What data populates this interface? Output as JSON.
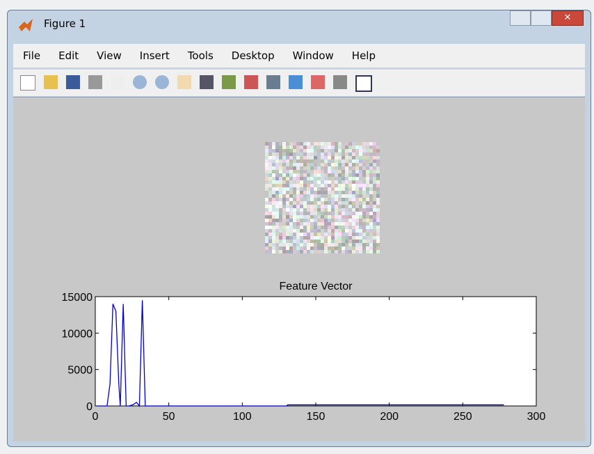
{
  "window": {
    "title": "Figure 1",
    "menu": [
      "File",
      "Edit",
      "View",
      "Insert",
      "Tools",
      "Desktop",
      "Window",
      "Help"
    ]
  },
  "chart_data": {
    "type": "line",
    "title": "Feature Vector",
    "x": [
      1,
      8,
      10,
      12,
      14,
      16,
      17,
      19,
      21,
      23,
      26,
      28,
      30,
      32,
      34,
      36,
      50,
      100,
      130,
      131,
      150,
      200,
      250,
      278
    ],
    "values": [
      0,
      0,
      3000,
      14000,
      13000,
      3000,
      0,
      14000,
      0,
      0,
      200,
      500,
      0,
      14500,
      0,
      0,
      0,
      0,
      0,
      150,
      150,
      150,
      150,
      150
    ],
    "color": "#0000cc",
    "xlim": [
      0,
      300
    ],
    "xticks": [
      0,
      50,
      100,
      150,
      200,
      250,
      300
    ],
    "ylim": [
      0,
      15000
    ],
    "yticks": [
      0,
      5000,
      10000,
      15000
    ]
  }
}
